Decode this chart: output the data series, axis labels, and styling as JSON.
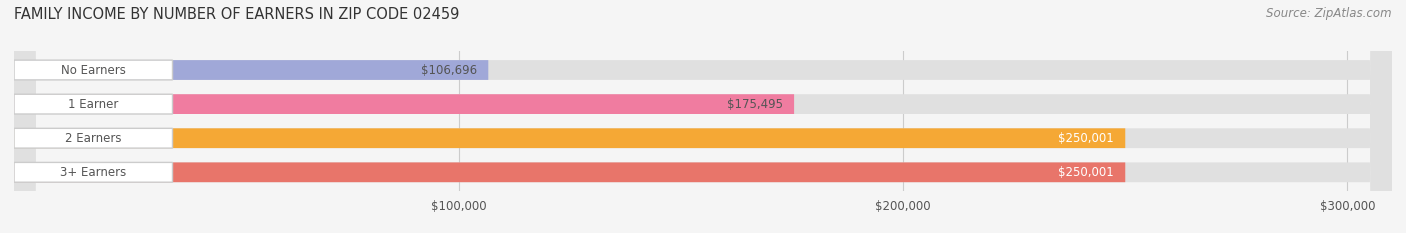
{
  "title": "FAMILY INCOME BY NUMBER OF EARNERS IN ZIP CODE 02459",
  "source": "Source: ZipAtlas.com",
  "categories": [
    "No Earners",
    "1 Earner",
    "2 Earners",
    "3+ Earners"
  ],
  "values": [
    106696,
    175495,
    250001,
    250001
  ],
  "bar_colors": [
    "#a0a8d8",
    "#f07ca0",
    "#f5a835",
    "#e8756a"
  ],
  "label_colors": [
    "#555555",
    "#555555",
    "#ffffff",
    "#ffffff"
  ],
  "value_labels": [
    "$106,696",
    "$175,495",
    "$250,001",
    "$250,001"
  ],
  "xlim": [
    0,
    310000
  ],
  "xticks": [
    100000,
    200000,
    300000
  ],
  "xticklabels": [
    "$100,000",
    "$200,000",
    "$300,000"
  ],
  "background_color": "#f5f5f5",
  "bar_background": "#e0e0e0",
  "title_fontsize": 10.5,
  "source_fontsize": 8.5,
  "label_fontsize": 8.5,
  "value_fontsize": 8.5,
  "tick_fontsize": 8.5,
  "bar_height": 0.58
}
